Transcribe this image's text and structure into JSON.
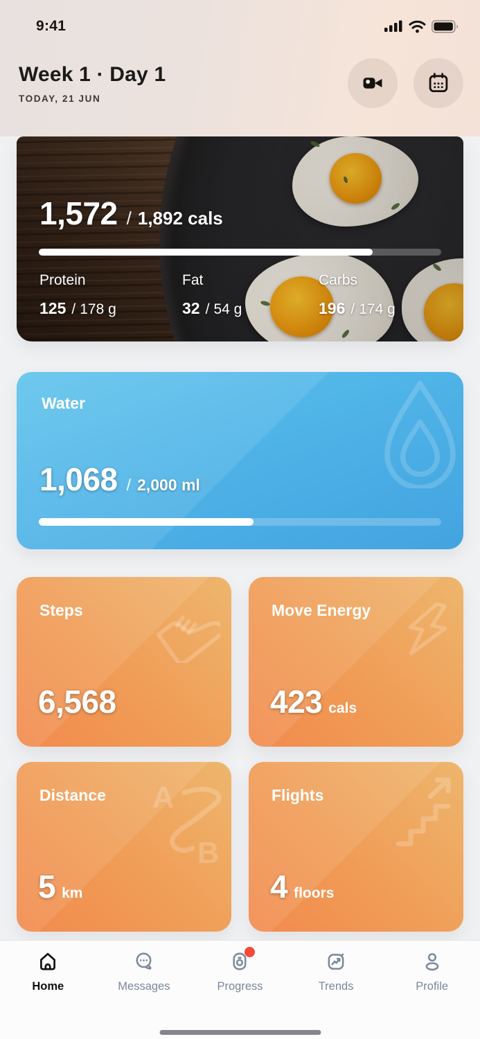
{
  "status_bar": {
    "time": "9:41"
  },
  "header": {
    "title": "Week 1 · Day 1",
    "subtitle": "TODAY, 21 JUN"
  },
  "calories": {
    "value": "1,572",
    "separator": "/",
    "goal": "1,892 cals",
    "progress_pct": 83,
    "macros": [
      {
        "label": "Protein",
        "value": "125",
        "separator": "/",
        "goal": "178 g"
      },
      {
        "label": "Fat",
        "value": "32",
        "separator": "/",
        "goal": "54 g"
      },
      {
        "label": "Carbs",
        "value": "196",
        "separator": "/",
        "goal": "174 g"
      }
    ]
  },
  "water": {
    "title": "Water",
    "value": "1,068",
    "separator": "/",
    "goal": "2,000 ml",
    "progress_pct": 53.4
  },
  "stats": [
    {
      "title": "Steps",
      "value": "6,568",
      "unit": ""
    },
    {
      "title": "Move Energy",
      "value": "423",
      "unit": "cals"
    },
    {
      "title": "Distance",
      "value": "5",
      "unit": "km"
    },
    {
      "title": "Flights",
      "value": "4",
      "unit": "floors"
    }
  ],
  "tab_bar": {
    "items": [
      {
        "label": "Home"
      },
      {
        "label": "Messages"
      },
      {
        "label": "Progress"
      },
      {
        "label": "Trends"
      },
      {
        "label": "Profile"
      }
    ],
    "active": "Home"
  },
  "colors": {
    "accent_orange": "#f28a4d",
    "accent_blue": "#4fb4e7",
    "badge_red": "#f4483a",
    "tab_active": "#0f0f0f",
    "tab_inactive": "#7b889c"
  }
}
